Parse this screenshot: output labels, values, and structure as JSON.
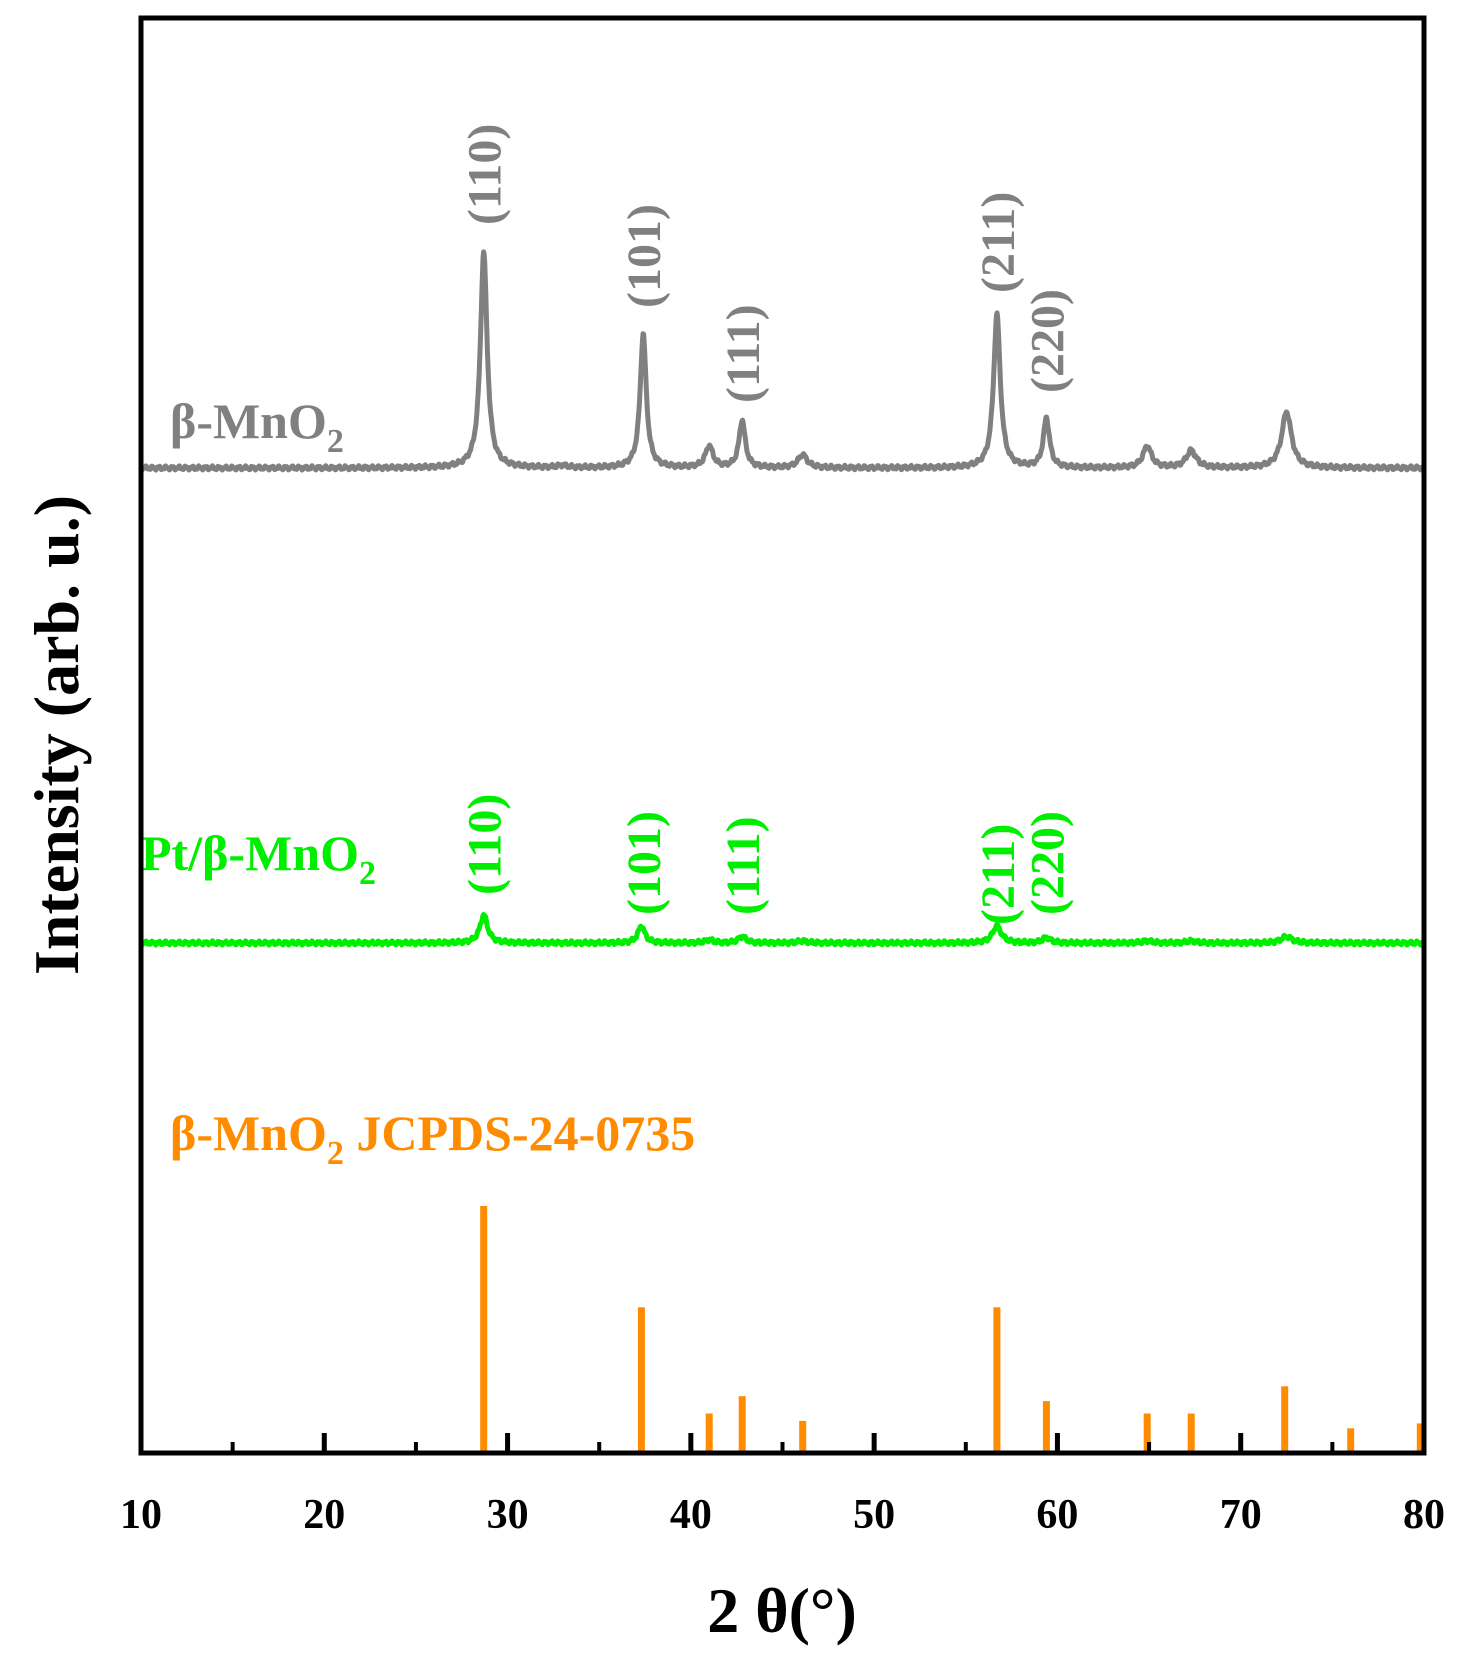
{
  "chart_data": {
    "type": "line",
    "title": "",
    "xlabel": "2 θ(°)",
    "ylabel": "Intensity (arb. u.)",
    "xlim": [
      10,
      80
    ],
    "x_ticks": [
      10,
      20,
      30,
      40,
      50,
      60,
      70,
      80
    ],
    "y_ticks_shown": false,
    "grid": false,
    "colors": {
      "beta_mno2": "#808080",
      "pt_beta_mno2": "#00ee00",
      "jcpds": "#ff8c00"
    },
    "series": [
      {
        "name": "β-MnO2",
        "label_main": "β-MnO",
        "label_sub": "2",
        "color": "#808080",
        "baseline": 0,
        "peaks": [
          {
            "x": 28.7,
            "h": 1.0,
            "w": 0.22
          },
          {
            "x": 33.0,
            "h": 0.01,
            "w": 0.3
          },
          {
            "x": 37.4,
            "h": 0.62,
            "w": 0.2
          },
          {
            "x": 41.0,
            "h": 0.1,
            "w": 0.25
          },
          {
            "x": 42.8,
            "h": 0.22,
            "w": 0.2
          },
          {
            "x": 46.1,
            "h": 0.06,
            "w": 0.3
          },
          {
            "x": 56.7,
            "h": 0.71,
            "w": 0.22
          },
          {
            "x": 59.4,
            "h": 0.23,
            "w": 0.2
          },
          {
            "x": 64.9,
            "h": 0.1,
            "w": 0.28
          },
          {
            "x": 67.3,
            "h": 0.08,
            "w": 0.32
          },
          {
            "x": 72.5,
            "h": 0.26,
            "w": 0.32
          }
        ],
        "hkl_labels": [
          {
            "x": 28.7,
            "text": "(110)"
          },
          {
            "x": 37.4,
            "text": "(101)"
          },
          {
            "x": 42.8,
            "text": "(111)"
          },
          {
            "x": 56.7,
            "text": "(211)"
          },
          {
            "x": 59.4,
            "text": "(220)"
          }
        ]
      },
      {
        "name": "Pt/β-MnO2",
        "label_main": "Pt/β-MnO",
        "label_sub": "2",
        "color": "#00ee00",
        "baseline": 0,
        "peaks": [
          {
            "x": 28.7,
            "h": 0.13,
            "w": 0.25
          },
          {
            "x": 37.3,
            "h": 0.08,
            "w": 0.22
          },
          {
            "x": 41.0,
            "h": 0.015,
            "w": 0.25
          },
          {
            "x": 42.8,
            "h": 0.03,
            "w": 0.25
          },
          {
            "x": 46.1,
            "h": 0.01,
            "w": 0.3
          },
          {
            "x": 56.7,
            "h": 0.08,
            "w": 0.28
          },
          {
            "x": 59.4,
            "h": 0.025,
            "w": 0.25
          },
          {
            "x": 64.9,
            "h": 0.01,
            "w": 0.3
          },
          {
            "x": 67.3,
            "h": 0.01,
            "w": 0.3
          },
          {
            "x": 72.5,
            "h": 0.03,
            "w": 0.35
          }
        ],
        "hkl_labels": [
          {
            "x": 28.7,
            "text": "(110)"
          },
          {
            "x": 37.4,
            "text": "(101)"
          },
          {
            "x": 42.8,
            "text": "(111)"
          },
          {
            "x": 56.7,
            "text": "(211)"
          },
          {
            "x": 59.4,
            "text": "(220)"
          }
        ]
      }
    ],
    "reference": {
      "name": "β-MnO2 JCPDS-24-0735",
      "label_main": "β-MnO",
      "label_sub": "2",
      "label_rest": " JCPDS-24-0735",
      "color": "#ff8c00",
      "lines": [
        {
          "x": 28.7,
          "h": 100
        },
        {
          "x": 37.3,
          "h": 59
        },
        {
          "x": 41.0,
          "h": 16
        },
        {
          "x": 42.8,
          "h": 23
        },
        {
          "x": 46.1,
          "h": 13
        },
        {
          "x": 56.7,
          "h": 59
        },
        {
          "x": 59.4,
          "h": 21
        },
        {
          "x": 64.9,
          "h": 16
        },
        {
          "x": 67.3,
          "h": 16
        },
        {
          "x": 72.4,
          "h": 27
        },
        {
          "x": 76.0,
          "h": 10
        },
        {
          "x": 79.8,
          "h": 12
        }
      ]
    }
  }
}
